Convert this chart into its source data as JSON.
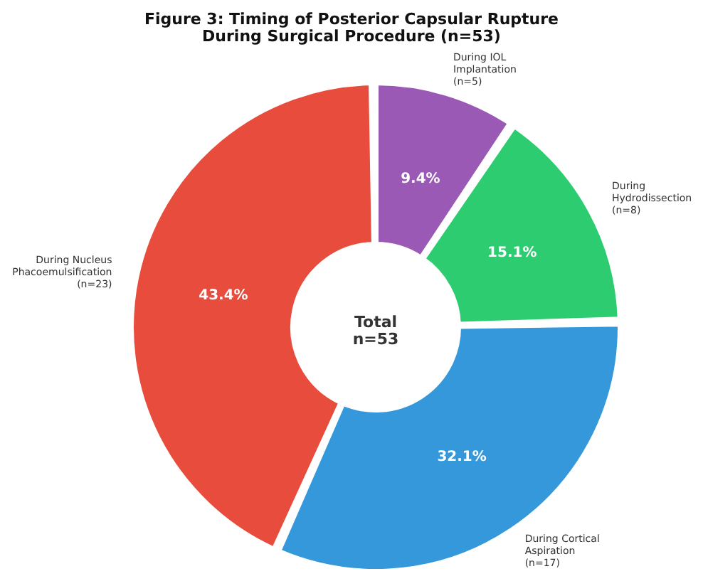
{
  "chart_data": {
    "type": "donut",
    "title": "Figure 3: Timing of Posterior Capsular Rupture\nDuring Surgical Procedure (n=53)",
    "categories": [
      "During IOL\nImplantation\n(n=5)",
      "During\nHydrodissection\n(n=8)",
      "During Cortical\nAspiration\n(n=17)",
      "During Nucleus\nPhacoemulsification\n(n=23)"
    ],
    "values": [
      9.4,
      15.1,
      32.1,
      43.4
    ],
    "colors": [
      "#9b59b6",
      "#2ecc71",
      "#3498db",
      "#e74c3c"
    ],
    "value_labels": [
      "9.4%",
      "15.1%",
      "32.1%",
      "43.4%"
    ],
    "annotations": [
      "Total\nn=53"
    ],
    "legend": false
  }
}
